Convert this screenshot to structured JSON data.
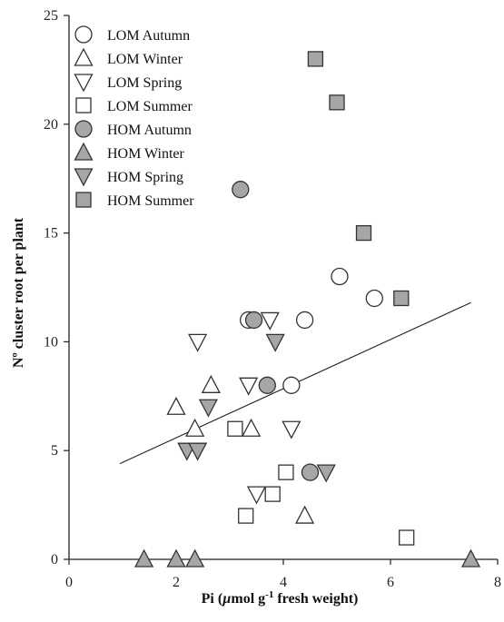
{
  "chart_data": {
    "type": "scatter",
    "title": "",
    "xlabel": "Pi (µmol g⁻¹ fresh weight)",
    "xlabel_parts": {
      "a": "Pi (",
      "mu": "µ",
      "b": "mol g",
      "sup": "-1",
      "c": " fresh weight)"
    },
    "ylabel": "Nº cluster root per plant",
    "xlim": [
      0,
      8
    ],
    "ylim": [
      0,
      25
    ],
    "xticks": [
      0,
      2,
      4,
      6,
      8
    ],
    "xtick_labels": [
      "0",
      "2",
      "4",
      "6",
      "8"
    ],
    "yticks": [
      0,
      5,
      10,
      15,
      20,
      25
    ],
    "ytick_labels": [
      "0",
      "5",
      "10",
      "15",
      "20",
      "25"
    ],
    "grid": false,
    "legend_position": "top-left",
    "fill_grey": "#a6a6a6",
    "series": [
      {
        "name": "LOM Autumn",
        "marker": "circle",
        "filled": false,
        "points": [
          [
            3.35,
            11
          ],
          [
            4.4,
            11
          ],
          [
            5.05,
            13
          ],
          [
            5.7,
            12
          ],
          [
            4.15,
            8
          ]
        ]
      },
      {
        "name": "LOM Winter",
        "marker": "triangle-up",
        "filled": false,
        "points": [
          [
            2.0,
            7
          ],
          [
            2.65,
            8
          ],
          [
            2.35,
            6
          ],
          [
            3.4,
            6
          ],
          [
            4.4,
            2
          ]
        ]
      },
      {
        "name": "LOM Spring",
        "marker": "triangle-down",
        "filled": false,
        "points": [
          [
            2.4,
            10
          ],
          [
            3.75,
            11
          ],
          [
            3.35,
            8
          ],
          [
            4.15,
            6
          ],
          [
            3.5,
            3
          ]
        ]
      },
      {
        "name": "LOM Summer",
        "marker": "square",
        "filled": false,
        "points": [
          [
            3.1,
            6
          ],
          [
            4.05,
            4
          ],
          [
            3.8,
            3
          ],
          [
            3.3,
            2
          ],
          [
            6.3,
            1
          ]
        ]
      },
      {
        "name": "HOM Autumn",
        "marker": "circle",
        "filled": true,
        "points": [
          [
            3.2,
            17
          ],
          [
            3.45,
            11
          ],
          [
            3.7,
            8
          ],
          [
            4.5,
            4
          ]
        ]
      },
      {
        "name": "HOM Winter",
        "marker": "triangle-up",
        "filled": true,
        "points": [
          [
            1.4,
            0
          ],
          [
            2.0,
            0
          ],
          [
            2.35,
            0
          ],
          [
            7.5,
            0
          ]
        ]
      },
      {
        "name": "HOM Spring",
        "marker": "triangle-down",
        "filled": true,
        "points": [
          [
            3.85,
            10
          ],
          [
            2.6,
            7
          ],
          [
            2.2,
            5
          ],
          [
            2.4,
            5
          ],
          [
            4.8,
            4
          ]
        ]
      },
      {
        "name": "HOM Summer",
        "marker": "square",
        "filled": true,
        "points": [
          [
            4.6,
            23
          ],
          [
            5.0,
            21
          ],
          [
            5.5,
            15
          ],
          [
            6.2,
            12
          ]
        ]
      }
    ],
    "regression_line": {
      "x": [
        0.95,
        7.5
      ],
      "y": [
        4.4,
        11.8
      ]
    }
  }
}
